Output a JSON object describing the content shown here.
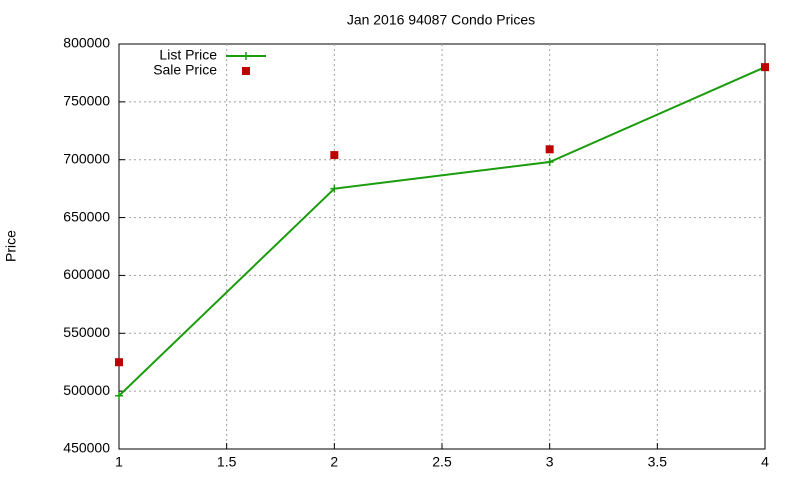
{
  "chart_data": {
    "type": "line",
    "title": "Jan 2016 94087 Condo Prices",
    "y_label": "Price",
    "x": [
      1,
      2,
      3,
      4
    ],
    "series": [
      {
        "name": "List Price",
        "color": "#1a9c0c",
        "mode": "lines+points",
        "values": [
          496000,
          675000,
          698000,
          780000
        ]
      },
      {
        "name": "Sale Price",
        "color": "#c00000",
        "mode": "points",
        "values": [
          525000,
          704000,
          709000,
          780000
        ]
      }
    ],
    "xlim": [
      1,
      4
    ],
    "xticks": [
      1,
      1.5,
      2,
      2.5,
      3,
      3.5,
      4
    ],
    "ylim": [
      450000,
      800000
    ],
    "yticks": [
      450000,
      500000,
      550000,
      600000,
      650000,
      700000,
      750000,
      800000
    ],
    "grid": true,
    "legend": "top-left"
  }
}
